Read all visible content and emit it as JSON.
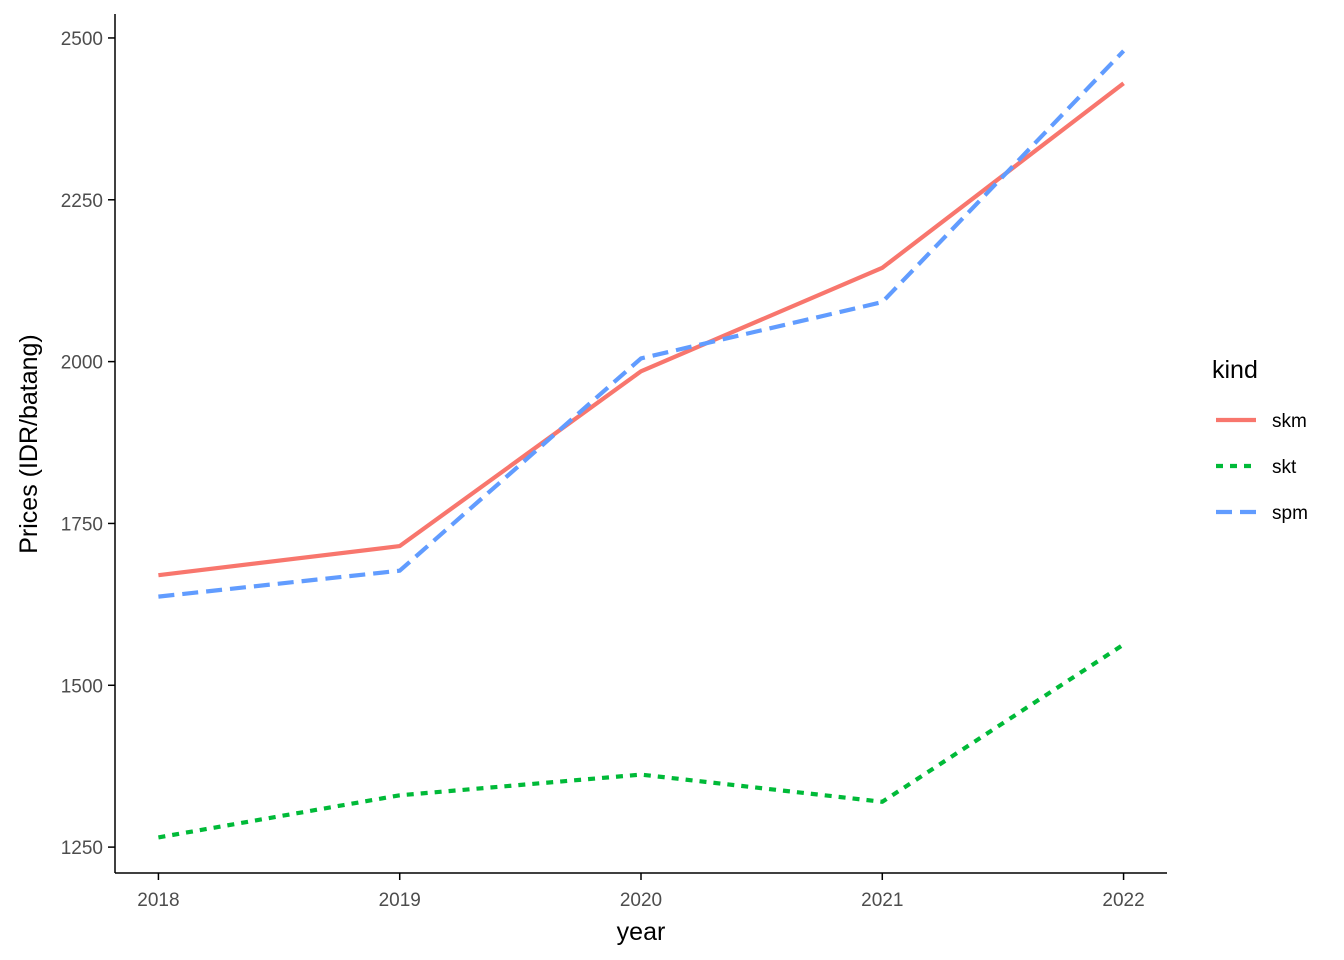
{
  "chart_data": {
    "type": "line",
    "xlabel": "year",
    "ylabel": "Prices (IDR/batang)",
    "x": [
      2018,
      2019,
      2020,
      2021,
      2022
    ],
    "x_tick_labels": [
      "2018",
      "2019",
      "2020",
      "2021",
      "2022"
    ],
    "y_ticks": [
      1250,
      1500,
      1750,
      2000,
      2250,
      2500
    ],
    "y_tick_labels": [
      "1250",
      "1500",
      "1750",
      "2000",
      "2250",
      "2500"
    ],
    "ylim": [
      1210,
      2537
    ],
    "xlim": [
      2017.82,
      2022.18
    ],
    "grid": false,
    "legend": {
      "title": "kind",
      "position": "right"
    },
    "series": [
      {
        "name": "skm",
        "color": "#F8766D",
        "linetype": "solid",
        "values": [
          1670,
          1715,
          1985,
          2145,
          2430
        ]
      },
      {
        "name": "skt",
        "color": "#00BA38",
        "linetype": "dotted",
        "values": [
          1265,
          1330,
          1362,
          1320,
          1563
        ]
      },
      {
        "name": "spm",
        "color": "#619CFF",
        "linetype": "dashed",
        "values": [
          1637,
          1677,
          2005,
          2092,
          2480
        ]
      }
    ]
  }
}
